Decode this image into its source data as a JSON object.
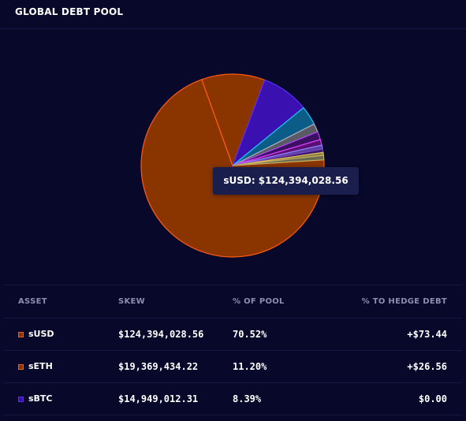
{
  "header": {
    "title": "GLOBAL DEBT POOL"
  },
  "tooltip": {
    "text": "sUSD: $124,394,028.56"
  },
  "chart_data": {
    "type": "pie",
    "slices": [
      {
        "label": "sUSD",
        "percent": 70.52,
        "color": "#8a3500",
        "stroke": "#ff5a12"
      },
      {
        "label": "sETH",
        "percent": 11.2,
        "color": "#8a3500",
        "stroke": "#ff5a12"
      },
      {
        "label": "sBTC",
        "percent": 8.39,
        "color": "#3a10b0",
        "stroke": "#5a2dff"
      },
      {
        "label": "",
        "percent": 3.4,
        "color": "#0b5c86",
        "stroke": "#18c8ff"
      },
      {
        "label": "",
        "percent": 1.5,
        "color": "#5a5a64",
        "stroke": "#b0b0c0"
      },
      {
        "label": "",
        "percent": 1.4,
        "color": "#3a1060",
        "stroke": "#b040ff"
      },
      {
        "label": "",
        "percent": 1.0,
        "color": "#5a1070",
        "stroke": "#e040ff"
      },
      {
        "label": "",
        "percent": 0.7,
        "color": "#5a3fa0",
        "stroke": "#9080ff"
      },
      {
        "label": "",
        "percent": 0.6,
        "color": "#3a1a6a",
        "stroke": "#7a40c0"
      },
      {
        "label": "",
        "percent": 0.5,
        "color": "#8a7a40",
        "stroke": "#e0c060"
      },
      {
        "label": "",
        "percent": 0.79,
        "color": "#6a6a50",
        "stroke": "#c0b060"
      }
    ]
  },
  "table": {
    "headers": {
      "asset": "ASSET",
      "skew": "SKEW",
      "pct_pool": "% OF POOL",
      "pct_hedge": "% TO HEDGE DEBT"
    },
    "rows": [
      {
        "asset": "sUSD",
        "skew": "$124,394,028.56",
        "pct_pool": "70.52%",
        "hedge": "+$73.44",
        "swatch_fill": "#8a3500",
        "swatch_border": "#ff5a12"
      },
      {
        "asset": "sETH",
        "skew": "$19,369,434.22",
        "pct_pool": "11.20%",
        "hedge": "+$26.56",
        "swatch_fill": "#8a3500",
        "swatch_border": "#ff5a12"
      },
      {
        "asset": "sBTC",
        "skew": "$14,949,012.31",
        "pct_pool": "8.39%",
        "hedge": "$0.00",
        "swatch_fill": "#3a10b0",
        "swatch_border": "#5a2dff"
      }
    ]
  }
}
